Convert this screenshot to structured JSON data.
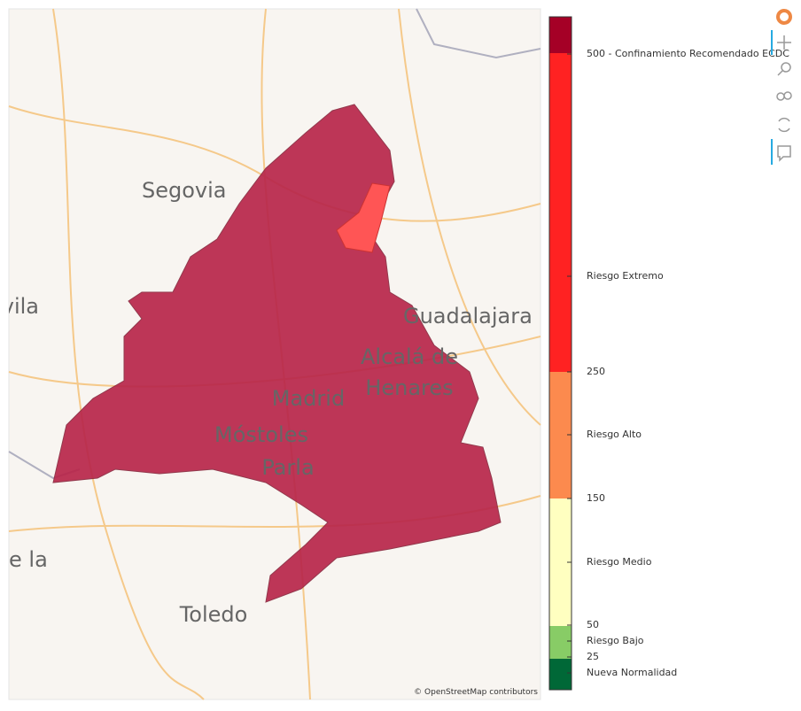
{
  "map": {
    "place_labels": [
      "Segovia",
      "vila",
      "Guadalajara",
      "Alcalá de",
      "Henares",
      "Madrid",
      "Móstoles",
      "Parla",
      "e la",
      "Toledo"
    ],
    "region_color": "#b8264a",
    "highlight_color": "#ff5555",
    "attribution": "© OpenStreetMap contributors"
  },
  "color_bar": {
    "colors": [
      "#a50026",
      "#ff2222",
      "#fc8a4e",
      "#ffffc0",
      "#88cc66",
      "#006837"
    ],
    "labels": [
      "500 - Confinamiento Recomendado ECDC",
      "Riesgo Extremo",
      "250",
      "Riesgo Alto",
      "150",
      "Riesgo Medio",
      "50",
      "Riesgo Bajo",
      "25",
      "Nueva Normalidad"
    ]
  }
}
